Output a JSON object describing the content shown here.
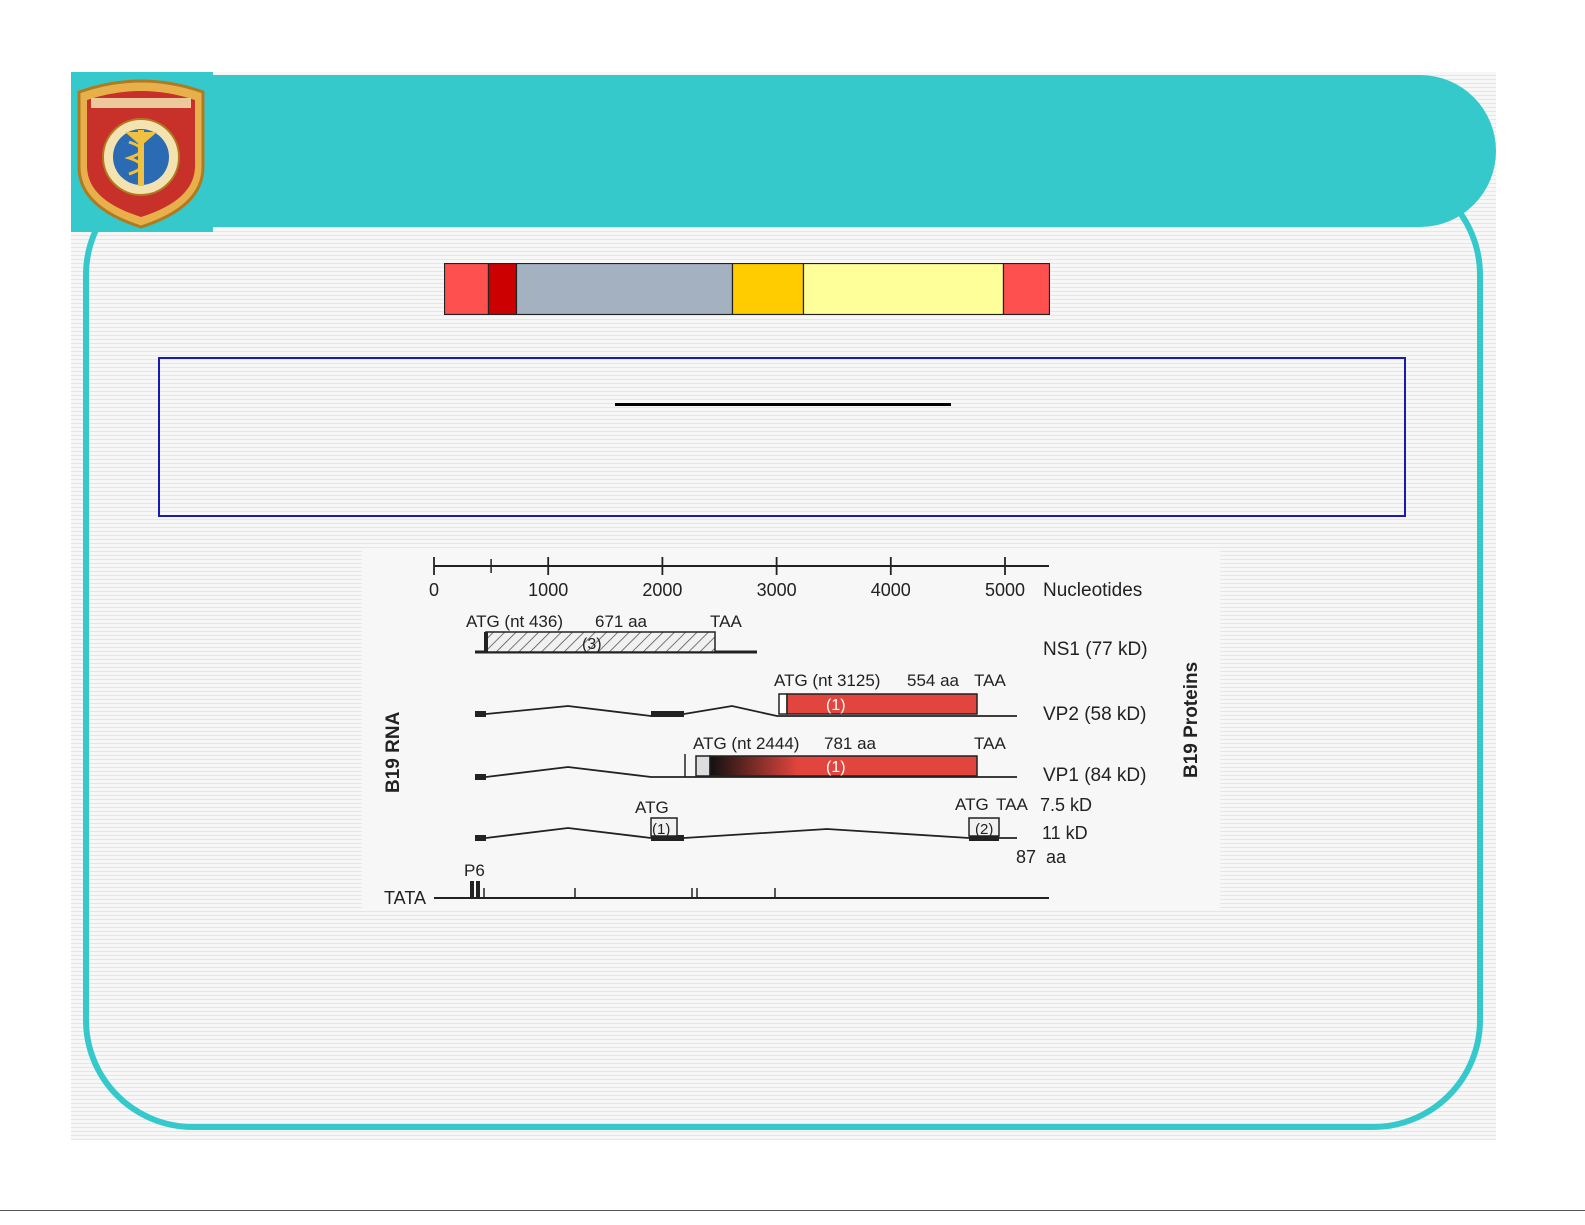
{
  "figure": {
    "scale_ticks": [
      {
        "value": "0",
        "nt": 0
      },
      {
        "value": "1000",
        "nt": 1000
      },
      {
        "value": "2000",
        "nt": 2000
      },
      {
        "value": "3000",
        "nt": 3000
      },
      {
        "value": "4000",
        "nt": 4000
      },
      {
        "value": "5000",
        "nt": 5000
      }
    ],
    "axis_label": "Nucleotides",
    "left_label": "B19 RNA",
    "right_label": "B19 Proteins",
    "tata_label": "TATA",
    "promoter_label": "P6",
    "ns1": {
      "start_label": "ATG (nt 436)",
      "length_label": "671 aa",
      "stop_label": "TAA",
      "frame": "(3)",
      "protein": "NS1 (77 kD)"
    },
    "vp2": {
      "start_label": "ATG (nt 3125)",
      "length_label": "554 aa",
      "stop_label": "TAA",
      "frame": "(1)",
      "protein": "VP2 (58 kD)"
    },
    "vp1": {
      "start_label": "ATG (nt 2444)",
      "length_label": "781 aa",
      "stop_label": "TAA",
      "frame": "(1)",
      "protein": "VP1 (84 kD)"
    },
    "small": {
      "atg_left": "ATG",
      "frame_left": "(1)",
      "atg_right": "ATG",
      "taa_right": "TAA",
      "frame_right": "(2)",
      "protein_a": "7.5 kD",
      "protein_b": "11 kD",
      "aa_count": "87",
      "aa_unit": "aa"
    }
  },
  "colors": {
    "header": "#35c9cb",
    "frame_border": "#35c9cb",
    "text_box_border": "#1a1ab4",
    "orf_red": "#e2453d"
  },
  "genome_bar_colors": [
    "#ff5050",
    "#cc0000",
    "#a3b1c0",
    "#ffcc00",
    "#ffff99",
    "#ff5050"
  ]
}
